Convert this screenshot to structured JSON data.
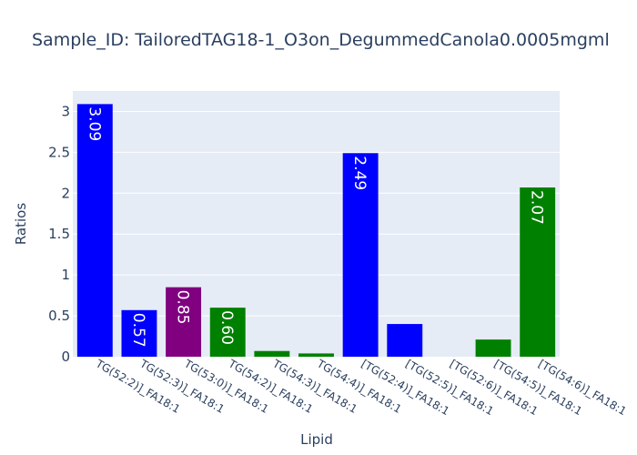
{
  "chart_data": {
    "type": "bar",
    "title": "Sample_ID: TailoredTAG18-1_O3on_DegummedCanola0.0005mgml",
    "xlabel": "Lipid",
    "ylabel": "Ratios",
    "ylim": [
      0,
      3.25
    ],
    "yticks": [
      0,
      0.5,
      1,
      1.5,
      2,
      2.5,
      3
    ],
    "ytick_labels": [
      "0",
      "0.5",
      "1",
      "1.5",
      "2",
      "2.5",
      "3"
    ],
    "grid": true,
    "legend": "none",
    "categories": [
      "TG(52:2)]_FA18:1",
      "TG(52:3)]_FA18:1",
      "TG(53:0)]_FA18:1",
      "TG(54:2)]_FA18:1",
      "TG(54:3)]_FA18:1",
      "TG(54:4)]_FA18:1",
      "[TG(52:4)]_FA18:1",
      "[TG(52:5)]_FA18:1",
      "[TG(52:6)]_FA18:1",
      "[TG(54:5)]_FA18:1",
      "[TG(54:6)]_FA18:1"
    ],
    "values": [
      3.09,
      0.57,
      0.85,
      0.6,
      0.07,
      0.04,
      2.49,
      0.4,
      0,
      0.21,
      2.07
    ],
    "data_labels": [
      "3.09",
      "0.57",
      "0.85",
      "0.60",
      "",
      "",
      "2.49",
      "",
      "",
      "",
      "2.07"
    ],
    "colors": [
      "#0000ff",
      "#0000ff",
      "#800080",
      "#008000",
      "#008000",
      "#008000",
      "#0000ff",
      "#0000ff",
      "#0000ff",
      "#008000",
      "#008000"
    ],
    "plot_bg": "#e5ecf6",
    "grid_color": "#ffffff"
  }
}
